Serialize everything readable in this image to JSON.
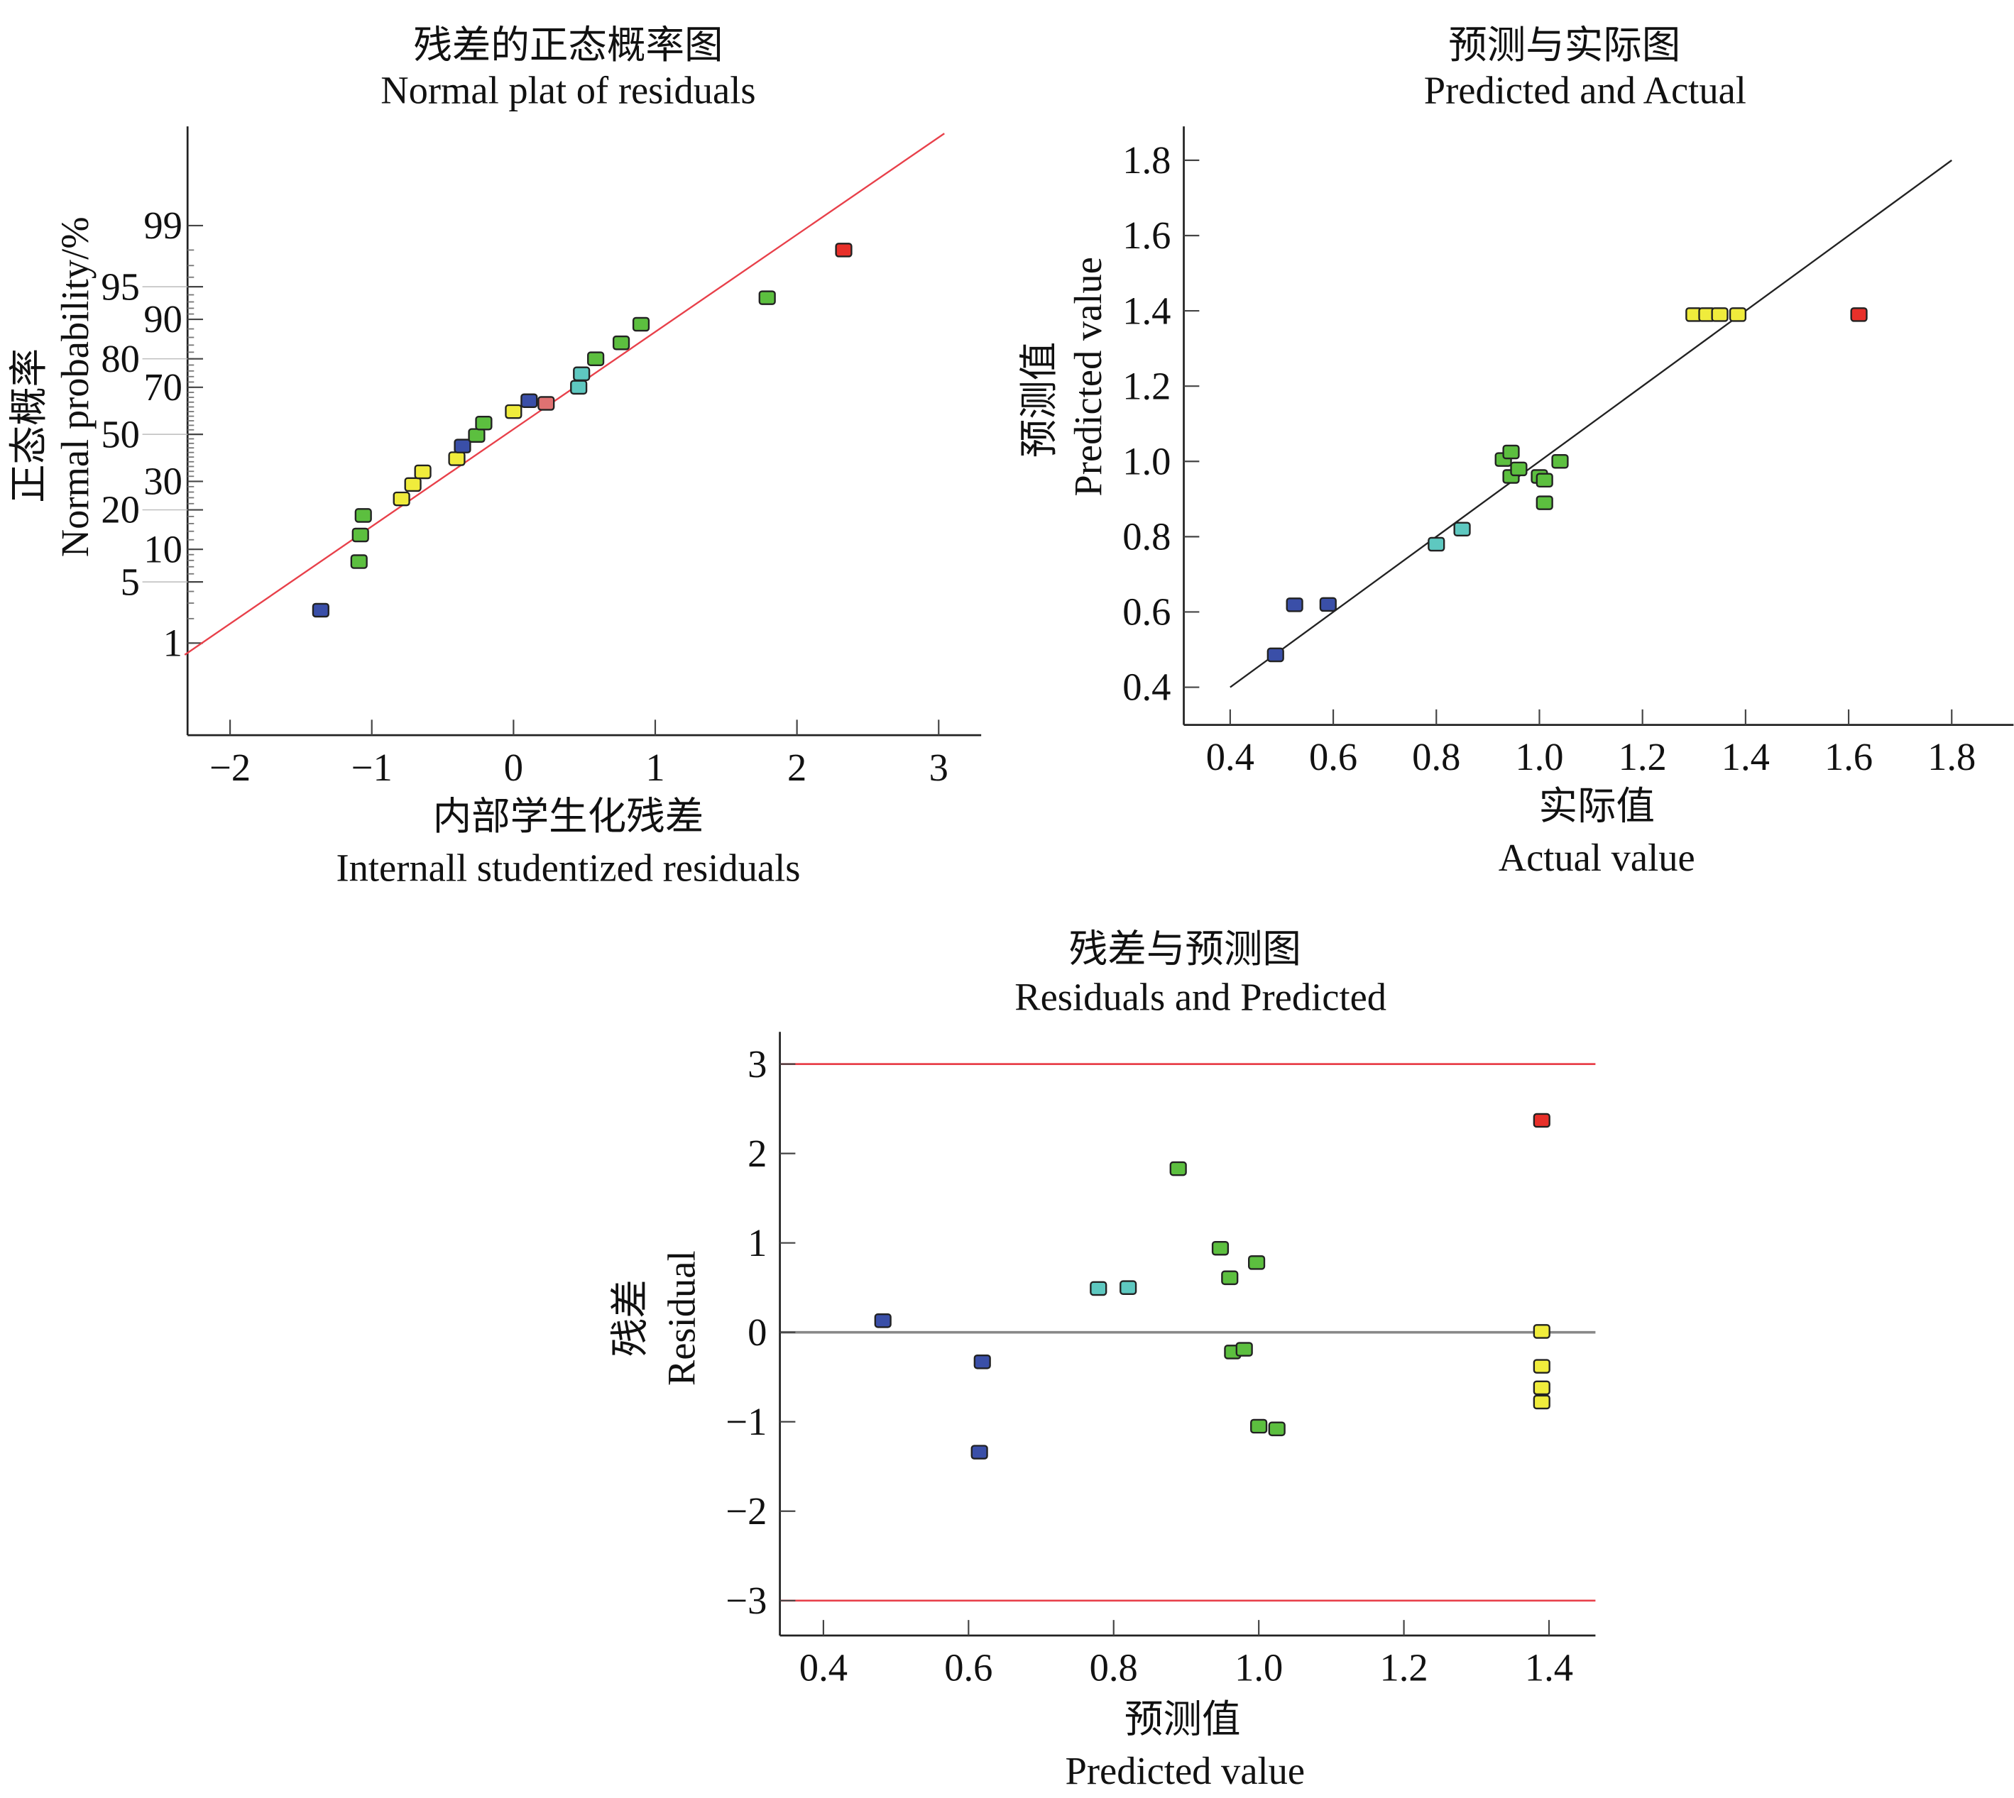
{
  "colors": {
    "blue": "#3a4fa8",
    "green": "#5cbf3f",
    "cyan": "#5ec8c0",
    "yellow": "#f0ec3c",
    "red": "#e8302a",
    "pink": "#e07272",
    "refline_red": "#e8404a",
    "refline_black": "#222222",
    "zero_line": "#888888"
  },
  "chart_data": [
    {
      "type": "scatter",
      "title_cn": "残差的正态概率图",
      "title": "Normal plat of residuals",
      "xlabel_cn": "内部学生化残差",
      "xlabel": "Internall studentized residuals",
      "ylabel_cn": "正态概率",
      "ylabel": "Normal probability/%",
      "y_scale": "normal-probability",
      "xlim": [
        -2.3,
        3.3
      ],
      "ylim": [
        0.04,
        99.97
      ],
      "x_ticks": [
        "−2",
        "−1",
        "0",
        "1",
        "2",
        "3"
      ],
      "x_tick_values": [
        -2,
        -1,
        0,
        1,
        2,
        3
      ],
      "y_ticks": [
        "1",
        "5",
        "10",
        "20",
        "30",
        "50",
        "70",
        "80",
        "90",
        "95",
        "99"
      ],
      "y_tick_values": [
        1,
        5,
        10,
        20,
        30,
        50,
        70,
        80,
        90,
        95,
        99
      ],
      "reference_line": {
        "color": "red",
        "from": [
          -2.32,
          0.7
        ],
        "to": [
          3.04,
          99.96
        ]
      },
      "points": [
        [
          -1.36,
          2.5,
          "blue"
        ],
        [
          -1.09,
          7.8,
          "green"
        ],
        [
          -1.08,
          13.1,
          "green"
        ],
        [
          -1.06,
          18.3,
          "green"
        ],
        [
          -0.79,
          23.6,
          "yellow"
        ],
        [
          -0.71,
          28.8,
          "yellow"
        ],
        [
          -0.64,
          33.8,
          "yellow"
        ],
        [
          -0.4,
          39.3,
          "yellow"
        ],
        [
          -0.36,
          44.8,
          "blue"
        ],
        [
          -0.26,
          49.5,
          "green"
        ],
        [
          -0.21,
          55,
          "green"
        ],
        [
          0.0,
          60,
          "yellow"
        ],
        [
          0.11,
          64.6,
          "blue"
        ],
        [
          0.23,
          63.5,
          "pink"
        ],
        [
          0.46,
          70,
          "cyan"
        ],
        [
          0.48,
          75,
          "cyan"
        ],
        [
          0.58,
          80,
          "green"
        ],
        [
          0.76,
          84.6,
          "green"
        ],
        [
          0.9,
          89,
          "green"
        ],
        [
          1.79,
          93.6,
          "green"
        ],
        [
          2.33,
          98,
          "red"
        ]
      ]
    },
    {
      "type": "scatter",
      "title_cn": "预测与实际图",
      "title": "Predicted and Actual",
      "xlabel_cn": "实际值",
      "xlabel": "Actual value",
      "ylabel_cn": "预测值",
      "ylabel": "Predicted value",
      "xlim": [
        0.31,
        1.92
      ],
      "ylim": [
        0.3,
        1.89
      ],
      "x_ticks": [
        "0.4",
        "0.6",
        "0.8",
        "1.0",
        "1.2",
        "1.4",
        "1.6",
        "1.8"
      ],
      "x_tick_values": [
        0.4,
        0.6,
        0.8,
        1.0,
        1.2,
        1.4,
        1.6,
        1.8
      ],
      "y_ticks": [
        "0.4",
        "0.6",
        "0.8",
        "1.0",
        "1.2",
        "1.4",
        "1.6",
        "1.8"
      ],
      "y_tick_values": [
        0.4,
        0.6,
        0.8,
        1.0,
        1.2,
        1.4,
        1.6,
        1.8
      ],
      "reference_line": {
        "color": "black",
        "from": [
          0.4,
          0.4
        ],
        "to": [
          1.8,
          1.8
        ]
      },
      "points": [
        [
          0.488,
          0.486,
          "blue"
        ],
        [
          0.525,
          0.619,
          "blue"
        ],
        [
          0.59,
          0.62,
          "blue"
        ],
        [
          0.8,
          0.78,
          "cyan"
        ],
        [
          0.85,
          0.82,
          "cyan"
        ],
        [
          0.93,
          1.005,
          "green"
        ],
        [
          0.945,
          1.025,
          "green"
        ],
        [
          0.945,
          0.96,
          "green"
        ],
        [
          0.96,
          0.98,
          "green"
        ],
        [
          1.0,
          0.96,
          "green"
        ],
        [
          1.01,
          0.95,
          "green"
        ],
        [
          1.01,
          0.89,
          "green"
        ],
        [
          1.04,
          1.0,
          "green"
        ],
        [
          1.3,
          1.39,
          "yellow"
        ],
        [
          1.325,
          1.39,
          "yellow"
        ],
        [
          1.35,
          1.39,
          "yellow"
        ],
        [
          1.385,
          1.39,
          "yellow"
        ],
        [
          1.62,
          1.39,
          "red"
        ]
      ]
    },
    {
      "type": "scatter",
      "title_cn": "残差与预测图",
      "title": "Residuals and Predicted",
      "xlabel_cn": "预测值",
      "xlabel": "Predicted value",
      "ylabel_cn": "残差",
      "ylabel": "Residual",
      "xlim": [
        0.34,
        1.464
      ],
      "ylim": [
        -3.39,
        3.36
      ],
      "x_ticks": [
        "0.4",
        "0.6",
        "0.8",
        "1.0",
        "1.2",
        "1.4"
      ],
      "x_tick_values": [
        0.4,
        0.6,
        0.8,
        1.0,
        1.2,
        1.4
      ],
      "y_ticks": [
        "−3",
        "−2",
        "−1",
        "0",
        "1",
        "2",
        "3"
      ],
      "y_tick_values": [
        -3,
        -2,
        -1,
        0,
        1,
        2,
        3
      ],
      "horizontal_lines": [
        {
          "y": 3,
          "color": "red"
        },
        {
          "y": -3,
          "color": "red"
        },
        {
          "y": 0,
          "color": "gray"
        }
      ],
      "points": [
        [
          0.482,
          0.13,
          "blue"
        ],
        [
          0.619,
          -0.33,
          "blue"
        ],
        [
          0.615,
          -1.34,
          "blue"
        ],
        [
          0.779,
          0.49,
          "cyan"
        ],
        [
          0.82,
          0.5,
          "cyan"
        ],
        [
          0.889,
          1.83,
          "green"
        ],
        [
          0.947,
          0.94,
          "green"
        ],
        [
          0.96,
          0.61,
          "green"
        ],
        [
          0.997,
          0.78,
          "green"
        ],
        [
          0.964,
          -0.22,
          "green"
        ],
        [
          0.98,
          -0.19,
          "green"
        ],
        [
          1.0,
          -1.05,
          "green"
        ],
        [
          1.025,
          -1.08,
          "green"
        ],
        [
          1.39,
          2.37,
          "red"
        ],
        [
          1.39,
          0.01,
          "yellow"
        ],
        [
          1.39,
          -0.38,
          "yellow"
        ],
        [
          1.39,
          -0.62,
          "yellow"
        ],
        [
          1.39,
          -0.78,
          "yellow"
        ]
      ]
    }
  ]
}
